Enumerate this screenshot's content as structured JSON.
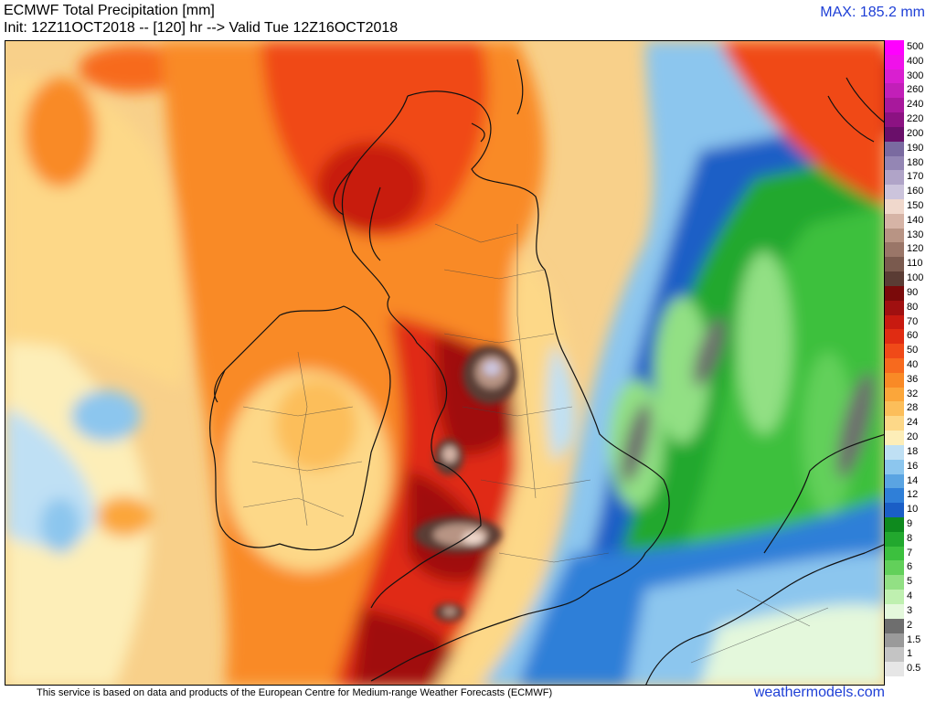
{
  "header": {
    "title": "ECMWF Total Precipitation [mm]",
    "subtitle": "Init: 12Z11OCT2018 -- [120] hr --> Valid Tue 12Z16OCT2018",
    "max_label": "MAX: 185.2 mm"
  },
  "colors": {
    "accent_blue": "#1e3fd6"
  },
  "legend": [
    {
      "label": "500",
      "color": "#ff00ff"
    },
    {
      "label": "400",
      "color": "#f011ea"
    },
    {
      "label": "300",
      "color": "#d91fd0"
    },
    {
      "label": "260",
      "color": "#c21fb8"
    },
    {
      "label": "240",
      "color": "#a8189c"
    },
    {
      "label": "220",
      "color": "#8c1282"
    },
    {
      "label": "200",
      "color": "#6a0f6a"
    },
    {
      "label": "190",
      "color": "#7a6aa0"
    },
    {
      "label": "180",
      "color": "#9486b4"
    },
    {
      "label": "170",
      "color": "#b0a4c8"
    },
    {
      "label": "160",
      "color": "#ccc4dc"
    },
    {
      "label": "150",
      "color": "#f0d8cc"
    },
    {
      "label": "140",
      "color": "#d6b4a6"
    },
    {
      "label": "130",
      "color": "#b89484"
    },
    {
      "label": "120",
      "color": "#9a7668"
    },
    {
      "label": "110",
      "color": "#7a5a4e"
    },
    {
      "label": "100",
      "color": "#5a3c34"
    },
    {
      "label": "90",
      "color": "#7a0a0a"
    },
    {
      "label": "80",
      "color": "#a01010"
    },
    {
      "label": "70",
      "color": "#c81a10"
    },
    {
      "label": "60",
      "color": "#e02c12"
    },
    {
      "label": "50",
      "color": "#f04a18"
    },
    {
      "label": "40",
      "color": "#f76a1e"
    },
    {
      "label": "36",
      "color": "#f98a26"
    },
    {
      "label": "32",
      "color": "#fba63a"
    },
    {
      "label": "28",
      "color": "#fcbe5a"
    },
    {
      "label": "24",
      "color": "#fdd888"
    },
    {
      "label": "20",
      "color": "#fdeeb8"
    },
    {
      "label": "18",
      "color": "#bfe0f4"
    },
    {
      "label": "16",
      "color": "#8cc6ee"
    },
    {
      "label": "14",
      "color": "#5aa4e2"
    },
    {
      "label": "12",
      "color": "#2f7fd8"
    },
    {
      "label": "10",
      "color": "#1a5ec6"
    },
    {
      "label": "9",
      "color": "#0e8a1e"
    },
    {
      "label": "8",
      "color": "#22a82e"
    },
    {
      "label": "7",
      "color": "#3cc03e"
    },
    {
      "label": "6",
      "color": "#62d05a"
    },
    {
      "label": "5",
      "color": "#92e084"
    },
    {
      "label": "4",
      "color": "#bff0b0"
    },
    {
      "label": "3",
      "color": "#e4f8dc"
    },
    {
      "label": "2",
      "color": "#6e6e6e"
    },
    {
      "label": "1.5",
      "color": "#9a9a9a"
    },
    {
      "label": "1",
      "color": "#c4c4c4"
    },
    {
      "label": "0.5",
      "color": "#e6e6e6"
    }
  ],
  "footer": {
    "disclaimer": "This service is based on data and products of the European Centre for Medium-range Weather Forecasts (ECMWF)",
    "brand": "weathermodels.com"
  }
}
